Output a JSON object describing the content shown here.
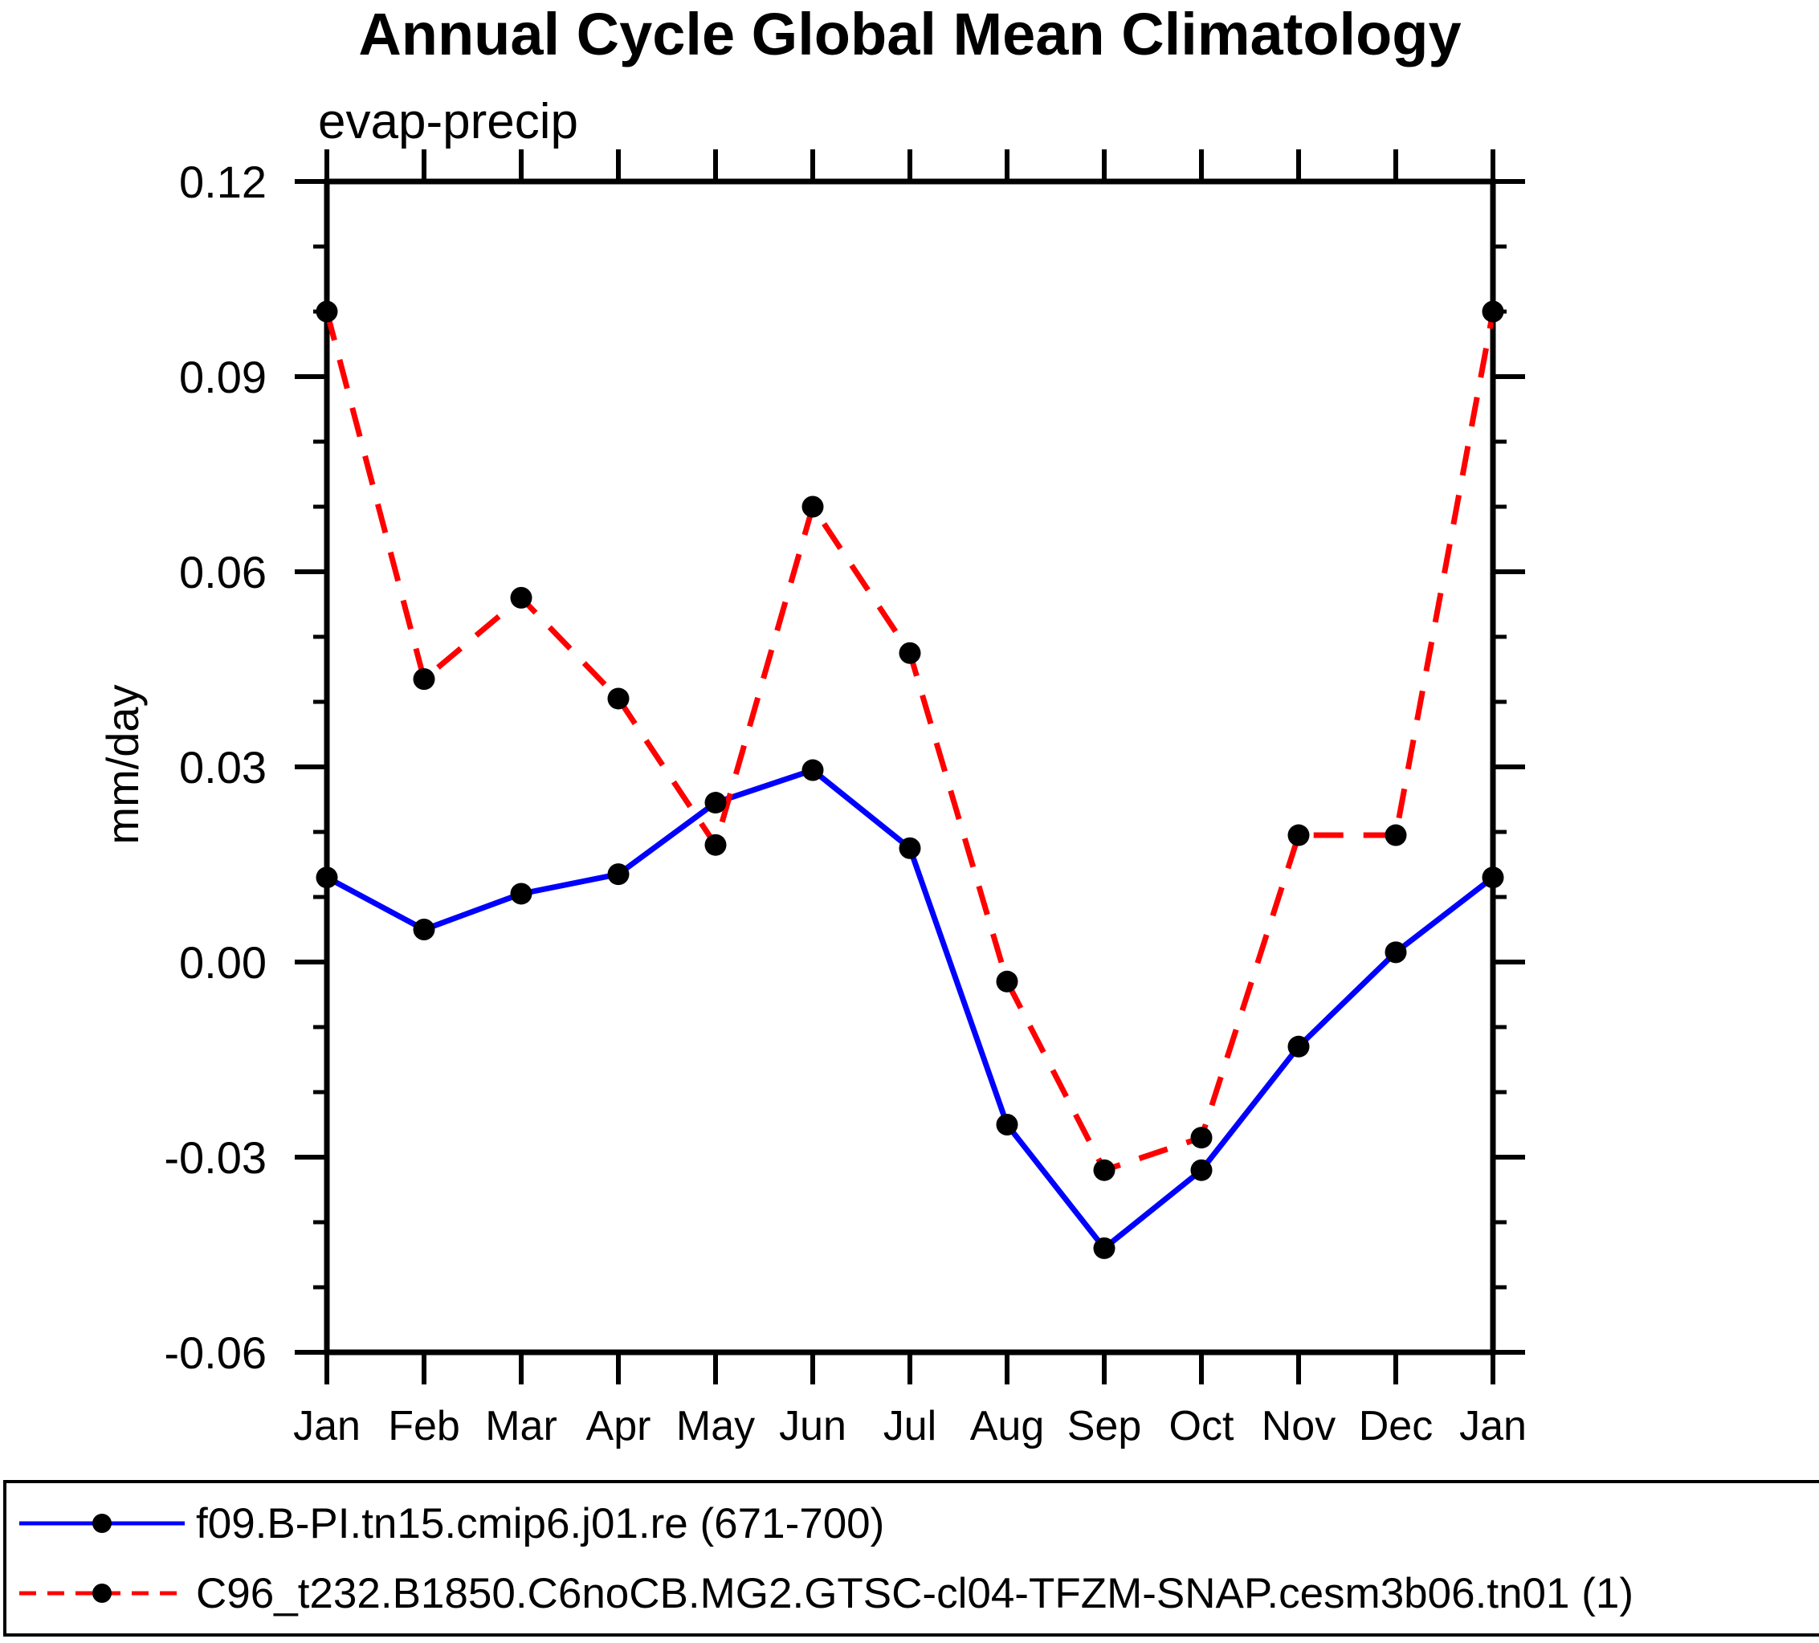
{
  "chart_data": {
    "type": "line",
    "title": "Annual Cycle Global Mean Climatology",
    "subtitle": "evap-precip",
    "ylabel": "mm/day",
    "categories": [
      "Jan",
      "Feb",
      "Mar",
      "Apr",
      "May",
      "Jun",
      "Jul",
      "Aug",
      "Sep",
      "Oct",
      "Nov",
      "Dec",
      "Jan"
    ],
    "ylim": [
      -0.06,
      0.12
    ],
    "y_ticks_major": [
      0.12,
      0.09,
      0.06,
      0.03,
      0.0,
      -0.03,
      -0.06
    ],
    "y_tick_labels": [
      "0.12",
      "0.09",
      "0.06",
      "0.03",
      "0.00",
      "-0.03",
      "-0.06"
    ],
    "y_minor_step": 0.01,
    "grid": false,
    "legend_position": "bottom",
    "frame_color": "#000000",
    "marker_color": "#000000",
    "series": [
      {
        "name": "f09.B-PI.tn15.cmip6.j01.re (671-700)",
        "color": "#0000ff",
        "style": "solid",
        "marker": "circle",
        "values": [
          0.013,
          0.005,
          0.0105,
          0.0135,
          0.0245,
          0.0295,
          0.0175,
          -0.025,
          -0.044,
          -0.032,
          -0.013,
          0.0015,
          0.013
        ]
      },
      {
        "name": "C96_t232.B1850.C6noCB.MG2.GTSC-cl04-TFZM-SNAP.cesm3b06.tn01 (1)",
        "color": "#ff0000",
        "style": "dashed",
        "marker": "circle",
        "values": [
          0.1,
          0.0435,
          0.056,
          0.0405,
          0.018,
          0.07,
          0.0475,
          -0.003,
          -0.032,
          -0.027,
          0.0195,
          0.0195,
          0.1
        ]
      }
    ]
  }
}
